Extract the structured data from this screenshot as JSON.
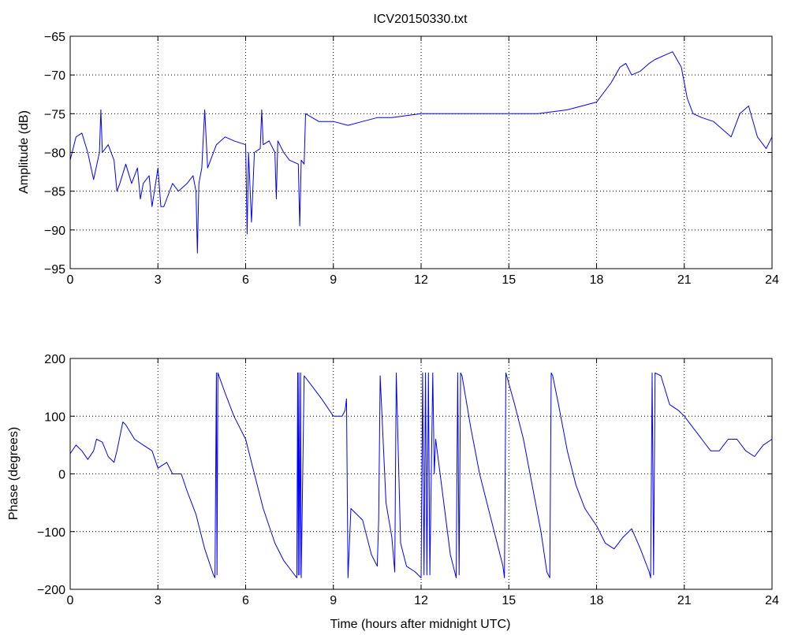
{
  "chart_data": [
    {
      "type": "line",
      "title": "ICV20150330.txt",
      "xlabel": "",
      "ylabel": "Amplitude (dB)",
      "xlim": [
        0,
        24
      ],
      "ylim": [
        -95,
        -65
      ],
      "xticks": [
        "0",
        "3",
        "6",
        "9",
        "12",
        "15",
        "18",
        "21",
        "24"
      ],
      "yticks": [
        "-95",
        "-90",
        "-85",
        "-80",
        "-75",
        "-70",
        "-65"
      ],
      "grid": true,
      "line_color": "#0000ff",
      "series": [
        {
          "x": [
            0,
            0.2,
            0.4,
            0.6,
            0.8,
            1.0,
            1.05,
            1.1,
            1.3,
            1.5,
            1.6,
            1.7,
            1.9,
            2.1,
            2.3,
            2.4,
            2.5,
            2.7,
            2.8,
            3.0,
            3.1,
            3.2,
            3.3,
            3.5,
            3.7,
            4.0,
            4.2,
            4.3,
            4.35,
            4.4,
            4.5,
            4.6,
            4.7,
            5.0,
            5.3,
            5.6,
            6.0,
            6.05,
            6.1,
            6.2,
            6.3,
            6.5,
            6.55,
            6.6,
            6.8,
            7.0,
            7.05,
            7.1,
            7.3,
            7.5,
            7.8,
            7.85,
            7.9,
            8.0,
            8.05,
            8.5,
            9.0,
            9.5,
            10.0,
            10.5,
            11.0,
            12.0,
            13.0,
            14.0,
            15.0,
            16.0,
            17.0,
            17.5,
            18.0,
            18.5,
            18.8,
            19.0,
            19.2,
            19.5,
            19.8,
            20.0,
            20.3,
            20.6,
            20.9,
            21.1,
            21.3,
            21.6,
            22.0,
            22.3,
            22.6,
            22.9,
            23.2,
            23.5,
            23.8,
            24.0
          ],
          "values": [
            -81,
            -78,
            -77.5,
            -80,
            -83.5,
            -80,
            -74.5,
            -80,
            -79,
            -81,
            -85,
            -84,
            -81.5,
            -84,
            -82,
            -86,
            -84,
            -83,
            -87,
            -82,
            -87,
            -87,
            -86,
            -84,
            -85,
            -84,
            -83,
            -85,
            -93,
            -84,
            -82,
            -74.5,
            -82,
            -79,
            -78,
            -78.5,
            -79,
            -90.5,
            -80,
            -89,
            -80,
            -79.5,
            -74.5,
            -79,
            -78.5,
            -80,
            -86,
            -78.5,
            -80,
            -81,
            -81.5,
            -89.5,
            -81,
            -81.5,
            -75,
            -76,
            -76,
            -76.5,
            -76,
            -75.5,
            -75.5,
            -75,
            -75,
            -75,
            -75,
            -75,
            -74.5,
            -74,
            -73.5,
            -71,
            -69,
            -68.5,
            -70,
            -69.5,
            -68.5,
            -68,
            -67.5,
            -67,
            -69,
            -73,
            -75,
            -75.5,
            -76,
            -77,
            -78,
            -75,
            -74,
            -78,
            -79.5,
            -78
          ]
        }
      ]
    },
    {
      "type": "line",
      "title": "",
      "xlabel": "Time (hours after midnight UTC)",
      "ylabel": "Phase (degrees)",
      "xlim": [
        0,
        24
      ],
      "ylim": [
        -200,
        200
      ],
      "xticks": [
        "0",
        "3",
        "6",
        "9",
        "12",
        "15",
        "18",
        "21",
        "24"
      ],
      "yticks": [
        "-200",
        "-100",
        "0",
        "100",
        "200"
      ],
      "grid": true,
      "line_color": "#0000ff",
      "series": [
        {
          "x": [
            0,
            0.2,
            0.4,
            0.6,
            0.8,
            0.9,
            1.1,
            1.3,
            1.5,
            1.6,
            1.8,
            1.9,
            2.2,
            2.5,
            2.8,
            3.0,
            3.3,
            3.5,
            3.8,
            4.0,
            4.3,
            4.6,
            4.9,
            4.95,
            5.0,
            5.02,
            5.05,
            5.3,
            5.6,
            6.0,
            6.3,
            6.6,
            7.0,
            7.3,
            7.6,
            7.75,
            7.78,
            7.8,
            7.82,
            7.85,
            7.88,
            7.9,
            8.0,
            8.3,
            8.6,
            9.0,
            9.3,
            9.4,
            9.45,
            9.5,
            9.6,
            10.0,
            10.3,
            10.5,
            10.55,
            10.6,
            10.8,
            11.0,
            11.1,
            11.15,
            11.3,
            11.5,
            11.8,
            12.0,
            12.05,
            12.1,
            12.15,
            12.2,
            12.25,
            12.3,
            12.4,
            12.45,
            12.5,
            12.8,
            13.0,
            13.2,
            13.25,
            13.3,
            13.35,
            13.4,
            13.7,
            14.0,
            14.3,
            14.6,
            14.8,
            14.85,
            14.9,
            15.2,
            15.5,
            15.8,
            16.1,
            16.3,
            16.4,
            16.45,
            16.5,
            16.7,
            17.0,
            17.3,
            17.6,
            18.0,
            18.3,
            18.6,
            18.9,
            19.2,
            19.5,
            19.8,
            19.85,
            19.9,
            19.95,
            20.0,
            20.2,
            20.5,
            20.8,
            21.0,
            21.3,
            21.6,
            21.9,
            22.2,
            22.5,
            22.8,
            23.1,
            23.4,
            23.7,
            24.0
          ],
          "values": [
            35,
            50,
            40,
            25,
            40,
            60,
            55,
            30,
            20,
            40,
            90,
            85,
            60,
            50,
            40,
            10,
            20,
            0,
            0,
            -30,
            -70,
            -130,
            -175,
            -180,
            175,
            -175,
            175,
            140,
            100,
            60,
            0,
            -60,
            -120,
            -150,
            -170,
            -180,
            175,
            -175,
            175,
            -175,
            175,
            -180,
            170,
            150,
            130,
            100,
            100,
            110,
            130,
            -180,
            -60,
            -80,
            -140,
            -160,
            -80,
            170,
            -50,
            -110,
            -170,
            175,
            -120,
            -160,
            -170,
            -180,
            175,
            -175,
            175,
            -175,
            175,
            -175,
            175,
            0,
            60,
            -60,
            -140,
            -180,
            175,
            -175,
            175,
            170,
            80,
            0,
            -60,
            -120,
            -160,
            -180,
            175,
            120,
            60,
            -20,
            -100,
            -170,
            -180,
            175,
            170,
            120,
            40,
            -20,
            -60,
            -90,
            -120,
            -130,
            -110,
            -95,
            -130,
            -170,
            -180,
            175,
            -175,
            175,
            170,
            120,
            110,
            100,
            80,
            60,
            40,
            40,
            60,
            60,
            40,
            30,
            50,
            60
          ]
        }
      ]
    }
  ]
}
